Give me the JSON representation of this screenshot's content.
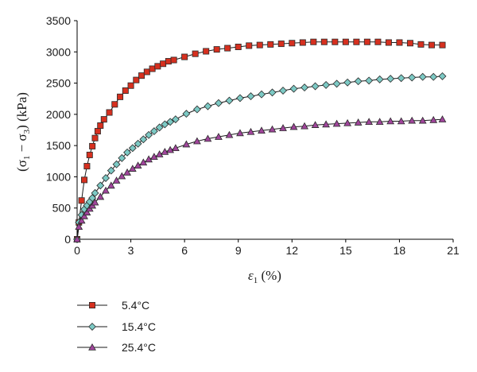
{
  "chart_data": {
    "type": "line",
    "xlabel_symbol": "ε",
    "xlabel_sub": "1",
    "xlabel_unit": " (%)",
    "ylabel_open": "(σ",
    "ylabel_sub1": "1",
    "ylabel_minus": " − σ",
    "ylabel_sub2": "3",
    "ylabel_unit": ") (kPa)",
    "xlim": [
      0,
      21
    ],
    "ylim": [
      0,
      3500
    ],
    "xticks": [
      0,
      3,
      6,
      9,
      12,
      15,
      18,
      21
    ],
    "yticks": [
      0,
      500,
      1000,
      1500,
      2000,
      2500,
      3000,
      3500
    ],
    "grid": false,
    "legend_position": "bottom-left",
    "series": [
      {
        "name": "5.4°C",
        "marker": "square",
        "color": "#d6301f",
        "x": [
          0,
          0.1,
          0.25,
          0.4,
          0.55,
          0.7,
          0.85,
          1.0,
          1.15,
          1.3,
          1.5,
          1.8,
          2.1,
          2.4,
          2.7,
          3.0,
          3.3,
          3.6,
          3.9,
          4.2,
          4.5,
          4.8,
          5.1,
          5.4,
          6.0,
          6.6,
          7.2,
          7.8,
          8.4,
          9.0,
          9.6,
          10.2,
          10.8,
          11.4,
          12.0,
          12.6,
          13.2,
          13.8,
          14.4,
          15.0,
          15.6,
          16.2,
          16.8,
          17.4,
          18.0,
          18.6,
          19.2,
          19.8,
          20.4
        ],
        "y": [
          0,
          270,
          620,
          950,
          1170,
          1350,
          1490,
          1620,
          1730,
          1820,
          1920,
          2030,
          2160,
          2280,
          2380,
          2460,
          2550,
          2620,
          2680,
          2730,
          2770,
          2810,
          2850,
          2870,
          2920,
          2970,
          3010,
          3040,
          3060,
          3080,
          3100,
          3110,
          3120,
          3130,
          3140,
          3150,
          3160,
          3160,
          3160,
          3160,
          3160,
          3160,
          3160,
          3150,
          3150,
          3140,
          3120,
          3110,
          3110
        ]
      },
      {
        "name": "15.4°C",
        "marker": "diamond",
        "color": "#7cc9c4",
        "x": [
          0,
          0.1,
          0.25,
          0.4,
          0.55,
          0.7,
          0.85,
          1.0,
          1.3,
          1.6,
          1.9,
          2.2,
          2.5,
          2.8,
          3.1,
          3.4,
          3.7,
          4.0,
          4.3,
          4.6,
          4.9,
          5.2,
          5.5,
          6.1,
          6.7,
          7.3,
          7.9,
          8.5,
          9.1,
          9.7,
          10.3,
          10.9,
          11.5,
          12.1,
          12.7,
          13.3,
          13.9,
          14.5,
          15.1,
          15.7,
          16.3,
          16.9,
          17.5,
          18.1,
          18.7,
          19.3,
          19.9,
          20.4
        ],
        "y": [
          0,
          270,
          390,
          480,
          540,
          600,
          660,
          740,
          860,
          980,
          1100,
          1200,
          1300,
          1390,
          1460,
          1530,
          1600,
          1670,
          1730,
          1790,
          1840,
          1880,
          1920,
          2010,
          2080,
          2130,
          2180,
          2220,
          2260,
          2290,
          2320,
          2350,
          2380,
          2410,
          2430,
          2450,
          2470,
          2490,
          2510,
          2530,
          2540,
          2560,
          2570,
          2580,
          2590,
          2600,
          2600,
          2610
        ]
      },
      {
        "name": "25.4°C",
        "marker": "triangle",
        "color": "#a0459b",
        "x": [
          0,
          0.1,
          0.25,
          0.4,
          0.55,
          0.7,
          0.85,
          1.0,
          1.3,
          1.6,
          1.9,
          2.2,
          2.5,
          2.8,
          3.1,
          3.4,
          3.7,
          4.0,
          4.3,
          4.6,
          4.9,
          5.2,
          5.5,
          6.1,
          6.7,
          7.3,
          7.9,
          8.5,
          9.1,
          9.7,
          10.3,
          10.9,
          11.5,
          12.1,
          12.7,
          13.3,
          13.9,
          14.5,
          15.1,
          15.7,
          16.3,
          16.9,
          17.5,
          18.1,
          18.7,
          19.3,
          19.9,
          20.4
        ],
        "y": [
          0,
          200,
          300,
          370,
          430,
          490,
          540,
          590,
          680,
          780,
          860,
          940,
          1010,
          1070,
          1130,
          1180,
          1230,
          1280,
          1320,
          1360,
          1400,
          1430,
          1460,
          1520,
          1570,
          1610,
          1640,
          1670,
          1700,
          1720,
          1740,
          1760,
          1780,
          1800,
          1810,
          1830,
          1840,
          1850,
          1860,
          1870,
          1880,
          1880,
          1890,
          1890,
          1900,
          1900,
          1910,
          1920
        ]
      }
    ]
  }
}
